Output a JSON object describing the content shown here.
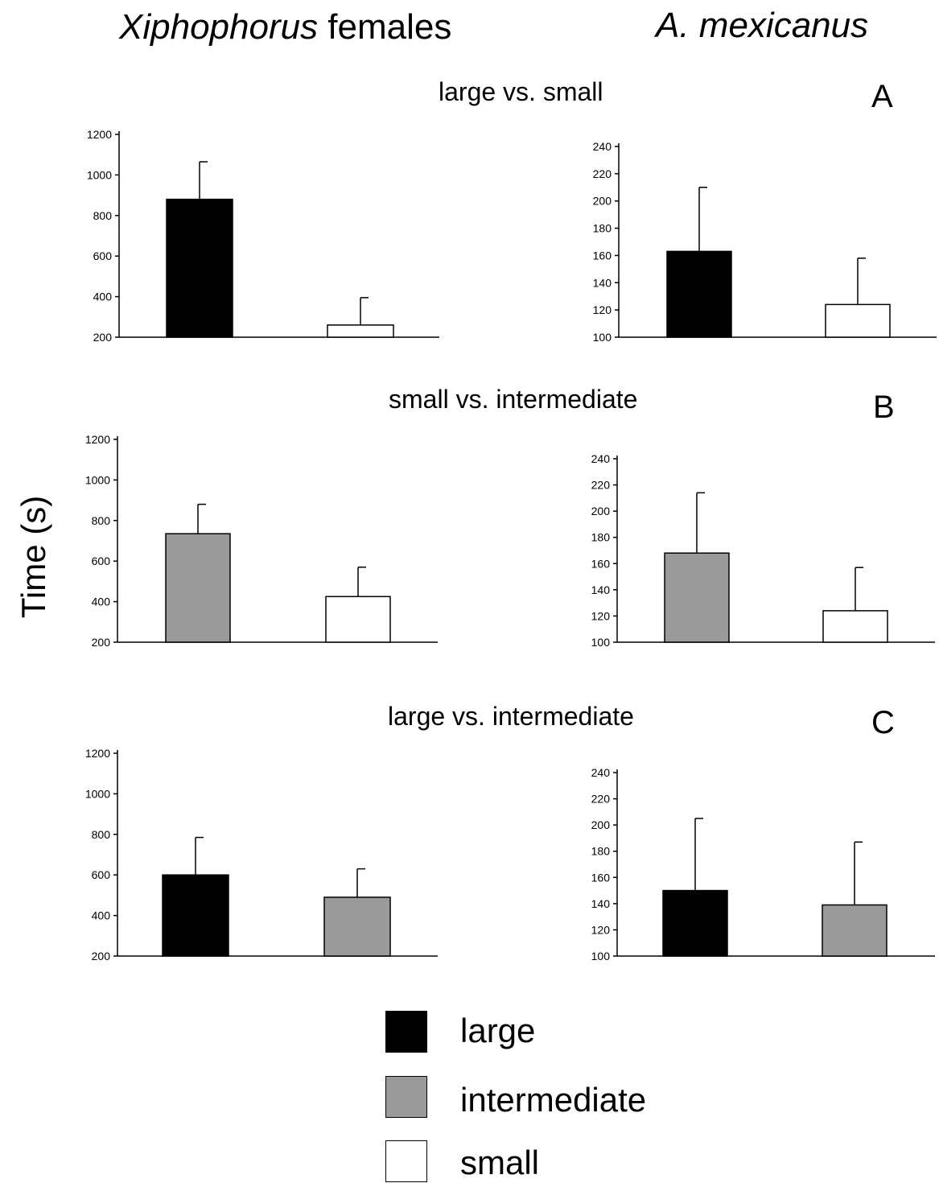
{
  "columns": {
    "left": {
      "italic": "Xiphophorus",
      "rest": " females"
    },
    "right": {
      "italic": "A. mexicanus",
      "rest": ""
    }
  },
  "ylabel": "Time (s)",
  "panels": [
    {
      "title": "large vs. small",
      "letter": "A"
    },
    {
      "title": "small vs. intermediate",
      "letter": "B"
    },
    {
      "title": "large vs. intermediate",
      "letter": "C"
    }
  ],
  "legend": [
    {
      "label": "large",
      "color": "#000000"
    },
    {
      "label": "intermediate",
      "color": "#9a9a9a"
    },
    {
      "label": "small",
      "color": "#ffffff"
    }
  ],
  "chart_data": [
    {
      "type": "bar",
      "panel": "A",
      "group": "Xiphophorus females",
      "categories": [
        "large",
        "small"
      ],
      "values": [
        880,
        260
      ],
      "errors": [
        185,
        135
      ],
      "ylim": [
        200,
        1200
      ],
      "yticks": [
        200,
        400,
        600,
        800,
        1000,
        1200
      ],
      "colors": [
        "#000000",
        "#ffffff"
      ],
      "ylabel": "Time (s)"
    },
    {
      "type": "bar",
      "panel": "A",
      "group": "A. mexicanus",
      "categories": [
        "large",
        "small"
      ],
      "values": [
        163,
        124
      ],
      "errors": [
        47,
        34
      ],
      "ylim": [
        100,
        240
      ],
      "yticks": [
        100,
        120,
        140,
        160,
        180,
        200,
        220,
        240
      ],
      "colors": [
        "#000000",
        "#ffffff"
      ],
      "ylabel": "Time (s)"
    },
    {
      "type": "bar",
      "panel": "B",
      "group": "Xiphophorus females",
      "categories": [
        "intermediate",
        "small"
      ],
      "values": [
        735,
        425
      ],
      "errors": [
        145,
        145
      ],
      "ylim": [
        200,
        1200
      ],
      "yticks": [
        200,
        400,
        600,
        800,
        1000,
        1200
      ],
      "colors": [
        "#9a9a9a",
        "#ffffff"
      ],
      "ylabel": "Time (s)"
    },
    {
      "type": "bar",
      "panel": "B",
      "group": "A. mexicanus",
      "categories": [
        "intermediate",
        "small"
      ],
      "values": [
        168,
        124
      ],
      "errors": [
        46,
        33
      ],
      "ylim": [
        100,
        240
      ],
      "yticks": [
        100,
        120,
        140,
        160,
        180,
        200,
        220,
        240
      ],
      "colors": [
        "#9a9a9a",
        "#ffffff"
      ],
      "ylabel": "Time (s)"
    },
    {
      "type": "bar",
      "panel": "C",
      "group": "Xiphophorus females",
      "categories": [
        "large",
        "intermediate"
      ],
      "values": [
        600,
        490
      ],
      "errors": [
        185,
        140
      ],
      "ylim": [
        200,
        1200
      ],
      "yticks": [
        200,
        400,
        600,
        800,
        1000,
        1200
      ],
      "colors": [
        "#000000",
        "#9a9a9a"
      ],
      "ylabel": "Time (s)"
    },
    {
      "type": "bar",
      "panel": "C",
      "group": "A. mexicanus",
      "categories": [
        "large",
        "intermediate"
      ],
      "values": [
        150,
        139
      ],
      "errors": [
        55,
        48
      ],
      "ylim": [
        100,
        240
      ],
      "yticks": [
        100,
        120,
        140,
        160,
        180,
        200,
        220,
        240
      ],
      "colors": [
        "#000000",
        "#9a9a9a"
      ],
      "ylabel": "Time (s)"
    }
  ]
}
